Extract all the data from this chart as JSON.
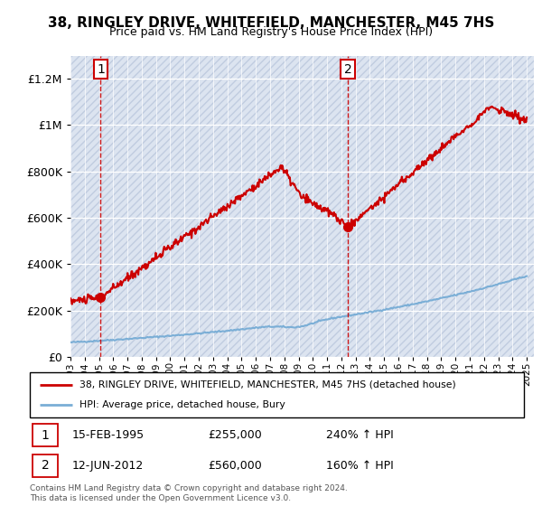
{
  "title": "38, RINGLEY DRIVE, WHITEFIELD, MANCHESTER, M45 7HS",
  "subtitle": "Price paid vs. HM Land Registry's House Price Index (HPI)",
  "legend_label_red": "38, RINGLEY DRIVE, WHITEFIELD, MANCHESTER, M45 7HS (detached house)",
  "legend_label_blue": "HPI: Average price, detached house, Bury",
  "annotation1_date": "15-FEB-1995",
  "annotation1_price": 255000,
  "annotation1_hpi": "240% ↑ HPI",
  "annotation2_date": "12-JUN-2012",
  "annotation2_price": 560000,
  "annotation2_hpi": "160% ↑ HPI",
  "copyright": "Contains HM Land Registry data © Crown copyright and database right 2024.\nThis data is licensed under the Open Government Licence v3.0.",
  "red_color": "#cc0000",
  "blue_color": "#7aaed6",
  "point1_x": 1995.12,
  "point1_y": 255000,
  "point2_x": 2012.45,
  "point2_y": 560000,
  "ylim": [
    0,
    1300000
  ],
  "xlim_start": 1993,
  "xlim_end": 2025.5
}
